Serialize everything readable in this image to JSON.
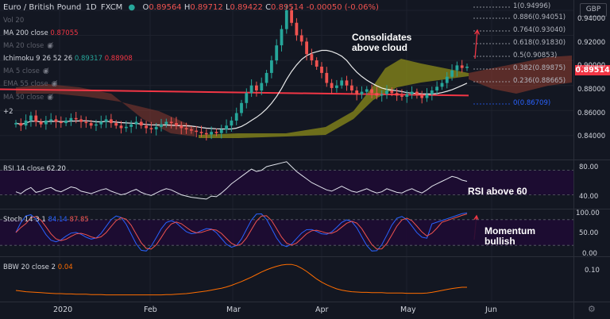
{
  "header": {
    "title": "Euro / British Pound",
    "interval": "1D",
    "source": "FXCM",
    "ohlc": {
      "o_label": "O",
      "o": "0.89564",
      "h_label": "H",
      "h": "0.89712",
      "l_label": "L",
      "l": "0.89422",
      "c_label": "C",
      "c": "0.89514",
      "change": "-0.00050 (-0.06%)"
    },
    "currency": "GBP",
    "last_price": "0.89514"
  },
  "legend": {
    "vol": {
      "label": "Vol 20",
      "visible": false
    },
    "ma200": {
      "label": "MA 200 close",
      "value": "0.87055",
      "color": "#f23645"
    },
    "ma20": {
      "label": "MA 20 close",
      "visible": false
    },
    "ichimoku": {
      "label": "Ichimoku 9 26 52 26",
      "value1": "0.89317",
      "value1_color": "#26a69a",
      "value2": "0.88908",
      "value2_color": "#f23645"
    },
    "ma5": {
      "label": "MA 5 close",
      "visible": false
    },
    "ema55": {
      "label": "EMA 55 close",
      "visible": false
    },
    "ma50": {
      "label": "MA 50 close",
      "visible": false
    },
    "more": "+2"
  },
  "annotations": {
    "consolidates_1": "Consolidates",
    "consolidates_2": "above cloud",
    "rsi": "RSI above 60",
    "momentum_1": "Momentum",
    "momentum_2": "bullish"
  },
  "fib_labels": [
    "1(0.94996)",
    "0.886(0.94051)",
    "0.764(0.93040)",
    "0.618(0.91830)",
    "0.5(0.90853)",
    "0.382(0.89875)",
    "0.236(0.88665)",
    "0(0.86709)"
  ],
  "price_axis_ticks": [
    "0.94000",
    "0.92000",
    "0.90000",
    "0.88000",
    "0.86000",
    "0.84000"
  ],
  "rsi_panel": {
    "label": "RSI 14 close",
    "value": "62.20",
    "ticks": [
      "80.00",
      "40.00"
    ]
  },
  "stoch_panel": {
    "label": "Stoch 14 3 1",
    "k": "84.14",
    "d": "87.85",
    "ticks": [
      "100.00",
      "50.00",
      "0.00"
    ]
  },
  "bbw_panel": {
    "label": "BBW 20 close 2",
    "value": "0.04",
    "ticks": [
      "0.10"
    ]
  },
  "x_axis": [
    "2020",
    "Feb",
    "Mar",
    "Apr",
    "May",
    "Jun"
  ],
  "colors": {
    "up": "#26a69a",
    "down": "#ef5350",
    "ma200": "#f23645",
    "ma_white": "#ffffff",
    "rsi": "#e0e3eb",
    "stoch_k": "#2962ff",
    "stoch_d": "#ef5350",
    "bbw": "#ff6d00",
    "fib": "#b2b5be",
    "cloud_bull": "#8c8c1a",
    "cloud_bear": "#8b3a2f",
    "arrow": "#f23645"
  },
  "chart_data": {
    "type": "candlestick",
    "y_range": [
      0.826,
      0.952
    ],
    "price_path": [
      0.85,
      0.848,
      0.852,
      0.856,
      0.851,
      0.849,
      0.852,
      0.853,
      0.851,
      0.85,
      0.852,
      0.854,
      0.853,
      0.851,
      0.85,
      0.848,
      0.849,
      0.851,
      0.853,
      0.85,
      0.848,
      0.846,
      0.847,
      0.849,
      0.851,
      0.848,
      0.846,
      0.845,
      0.847,
      0.849,
      0.851,
      0.85,
      0.848,
      0.846,
      0.845,
      0.844,
      0.843,
      0.842,
      0.841,
      0.843,
      0.842,
      0.845,
      0.848,
      0.852,
      0.858,
      0.866,
      0.874,
      0.88,
      0.876,
      0.882,
      0.89,
      0.9,
      0.912,
      0.925,
      0.94,
      0.93,
      0.92,
      0.915,
      0.905,
      0.9,
      0.895,
      0.89,
      0.882,
      0.878,
      0.88,
      0.884,
      0.88,
      0.876,
      0.873,
      0.875,
      0.877,
      0.874,
      0.872,
      0.873,
      0.876,
      0.874,
      0.872,
      0.871,
      0.873,
      0.875,
      0.872,
      0.87,
      0.873,
      0.876,
      0.879,
      0.882,
      0.887,
      0.892,
      0.896,
      0.894,
      0.895
    ],
    "ma200": [
      0.875,
      0.87
    ],
    "rsi_range": [
      20,
      95
    ],
    "stoch_range": [
      0,
      100
    ],
    "bbw_range": [
      0.0,
      0.13
    ]
  }
}
